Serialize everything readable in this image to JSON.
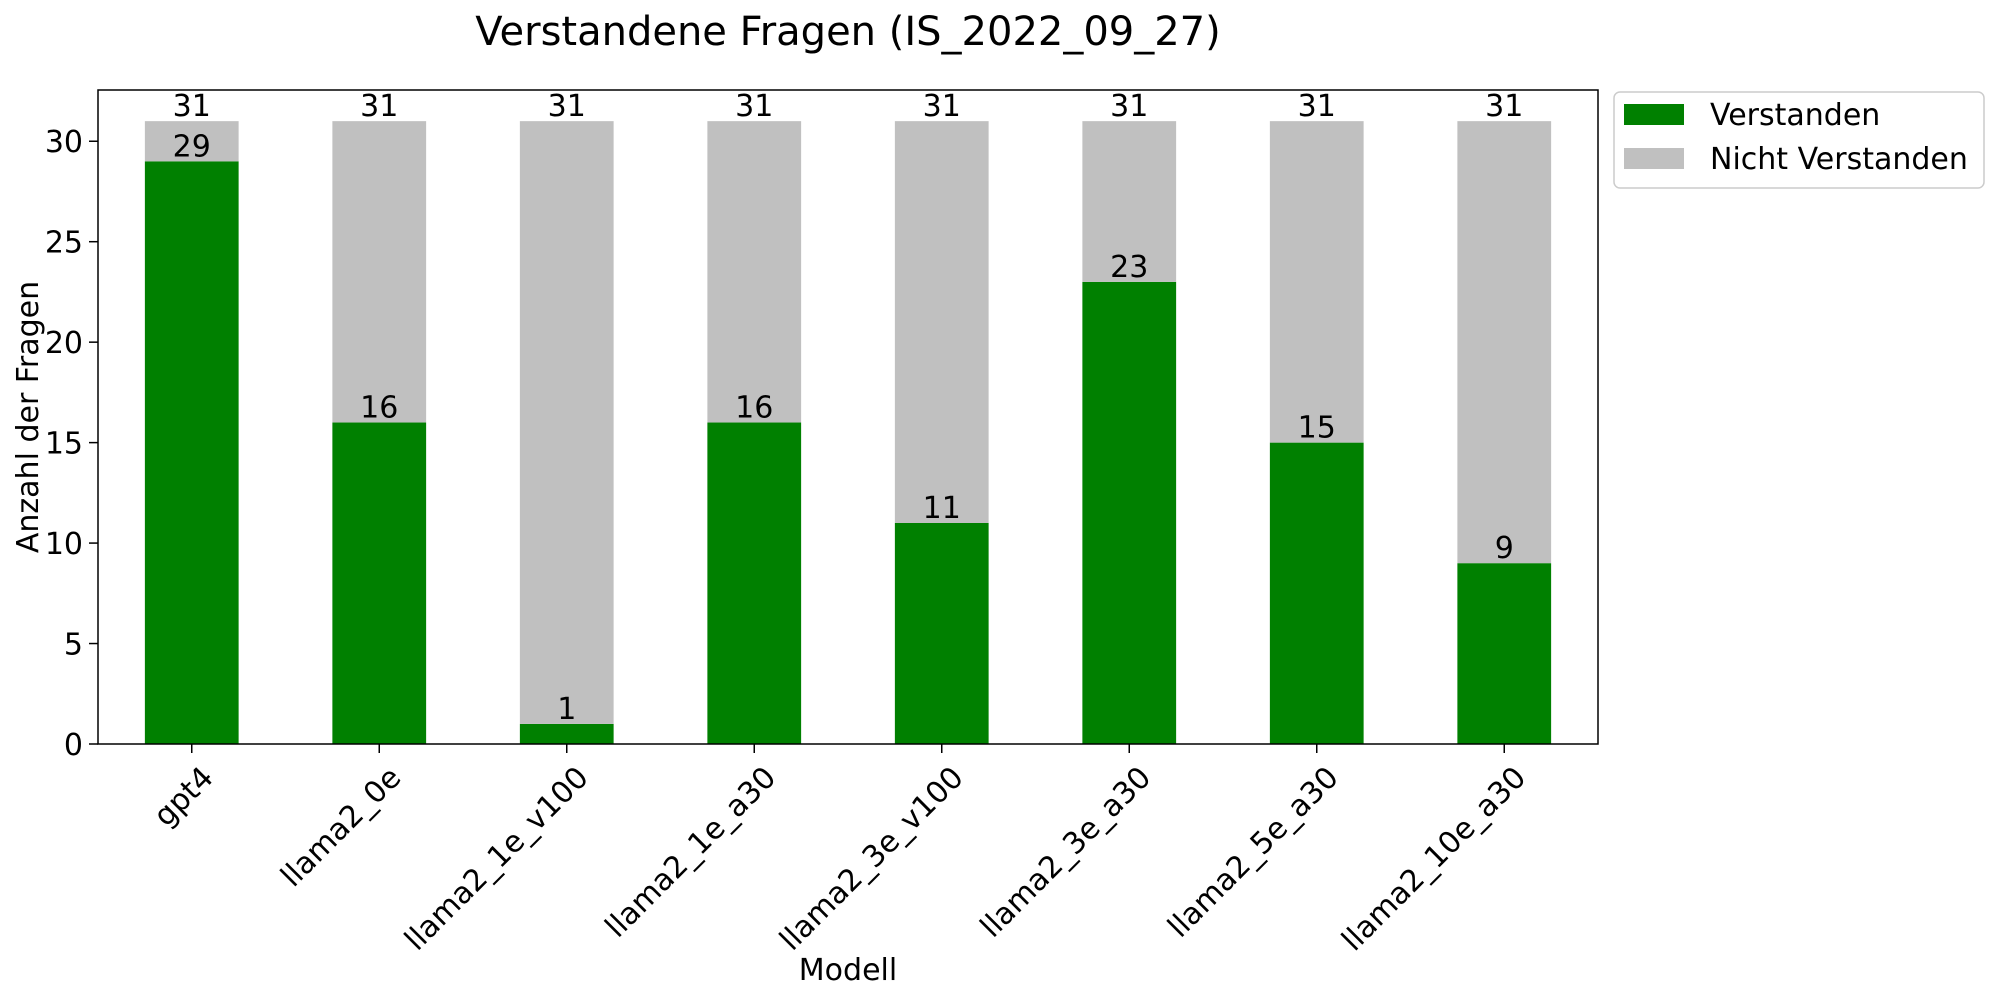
{
  "chart_data": {
    "type": "bar",
    "stacked": true,
    "title": "Verstandene Fragen (IS_2022_09_27)",
    "xlabel": "Modell",
    "ylabel": "Anzahl der Fragen",
    "categories": [
      "gpt4",
      "llama2_0e",
      "llama2_1e_v100",
      "llama2_1e_a30",
      "llama2_3e_v100",
      "llama2_3e_a30",
      "llama2_5e_a30",
      "llama2_10e_a30"
    ],
    "series": [
      {
        "name": "Verstanden",
        "values": [
          29,
          16,
          1,
          16,
          11,
          23,
          15,
          9
        ],
        "color": "#008000"
      },
      {
        "name": "Nicht Verstanden",
        "values": [
          2,
          15,
          30,
          15,
          20,
          8,
          16,
          22
        ],
        "color": "#c0c0c0"
      }
    ],
    "totals": [
      31,
      31,
      31,
      31,
      31,
      31,
      31,
      31
    ],
    "ylim": [
      0,
      32.55
    ],
    "yticks": [
      0,
      5,
      10,
      15,
      20,
      25,
      30
    ],
    "grid": false,
    "legend_position": "outside-top-right"
  }
}
